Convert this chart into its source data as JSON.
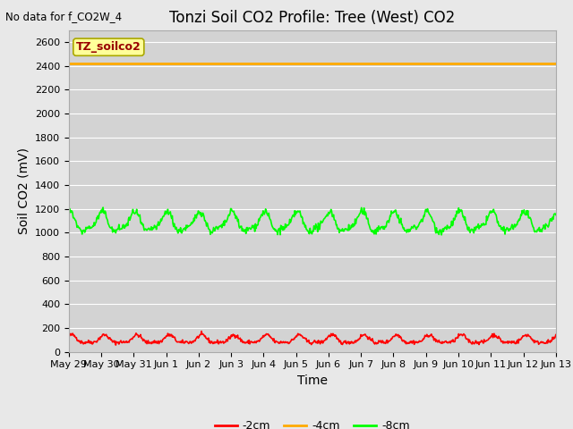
{
  "title": "Tonzi Soil CO2 Profile: Tree (West) CO2",
  "no_data_label": "No data for f_CO2W_4",
  "ylabel": "Soil CO2 (mV)",
  "xlabel": "Time",
  "legend_label": "TZ_soilco2",
  "ylim": [
    0,
    2700
  ],
  "yticks": [
    0,
    200,
    400,
    600,
    800,
    1000,
    1200,
    1400,
    1600,
    1800,
    2000,
    2200,
    2400,
    2600
  ],
  "background_color": "#e8e8e8",
  "plot_bg_color": "#d3d3d3",
  "series": {
    "neg2cm": {
      "label": "-2cm",
      "color": "#ff0000",
      "mean": 100,
      "amplitude": 30,
      "period": 1.0
    },
    "neg4cm": {
      "label": "-4cm",
      "color": "#ffaa00",
      "value": 2420
    },
    "neg8cm": {
      "label": "-8cm",
      "color": "#00ff00",
      "mean": 1080,
      "amplitude": 75,
      "period": 1.0
    }
  },
  "x_tick_labels": [
    "May 29",
    "May 30",
    "May 31",
    "Jun 1",
    "Jun 2",
    "Jun 3",
    "Jun 4",
    "Jun 5",
    "Jun 6",
    "Jun 7",
    "Jun 8",
    "Jun 9",
    "Jun 10",
    "Jun 11",
    "Jun 12",
    "Jun 13"
  ],
  "legend_box_color": "#ffff99",
  "legend_box_edge": "#aaa800",
  "legend_text_color": "#990000",
  "line_widths": {
    "neg2cm": 1.2,
    "neg4cm": 2.0,
    "neg8cm": 1.2
  },
  "title_fontsize": 12,
  "axis_label_fontsize": 10,
  "tick_fontsize": 8,
  "legend_fontsize": 9
}
